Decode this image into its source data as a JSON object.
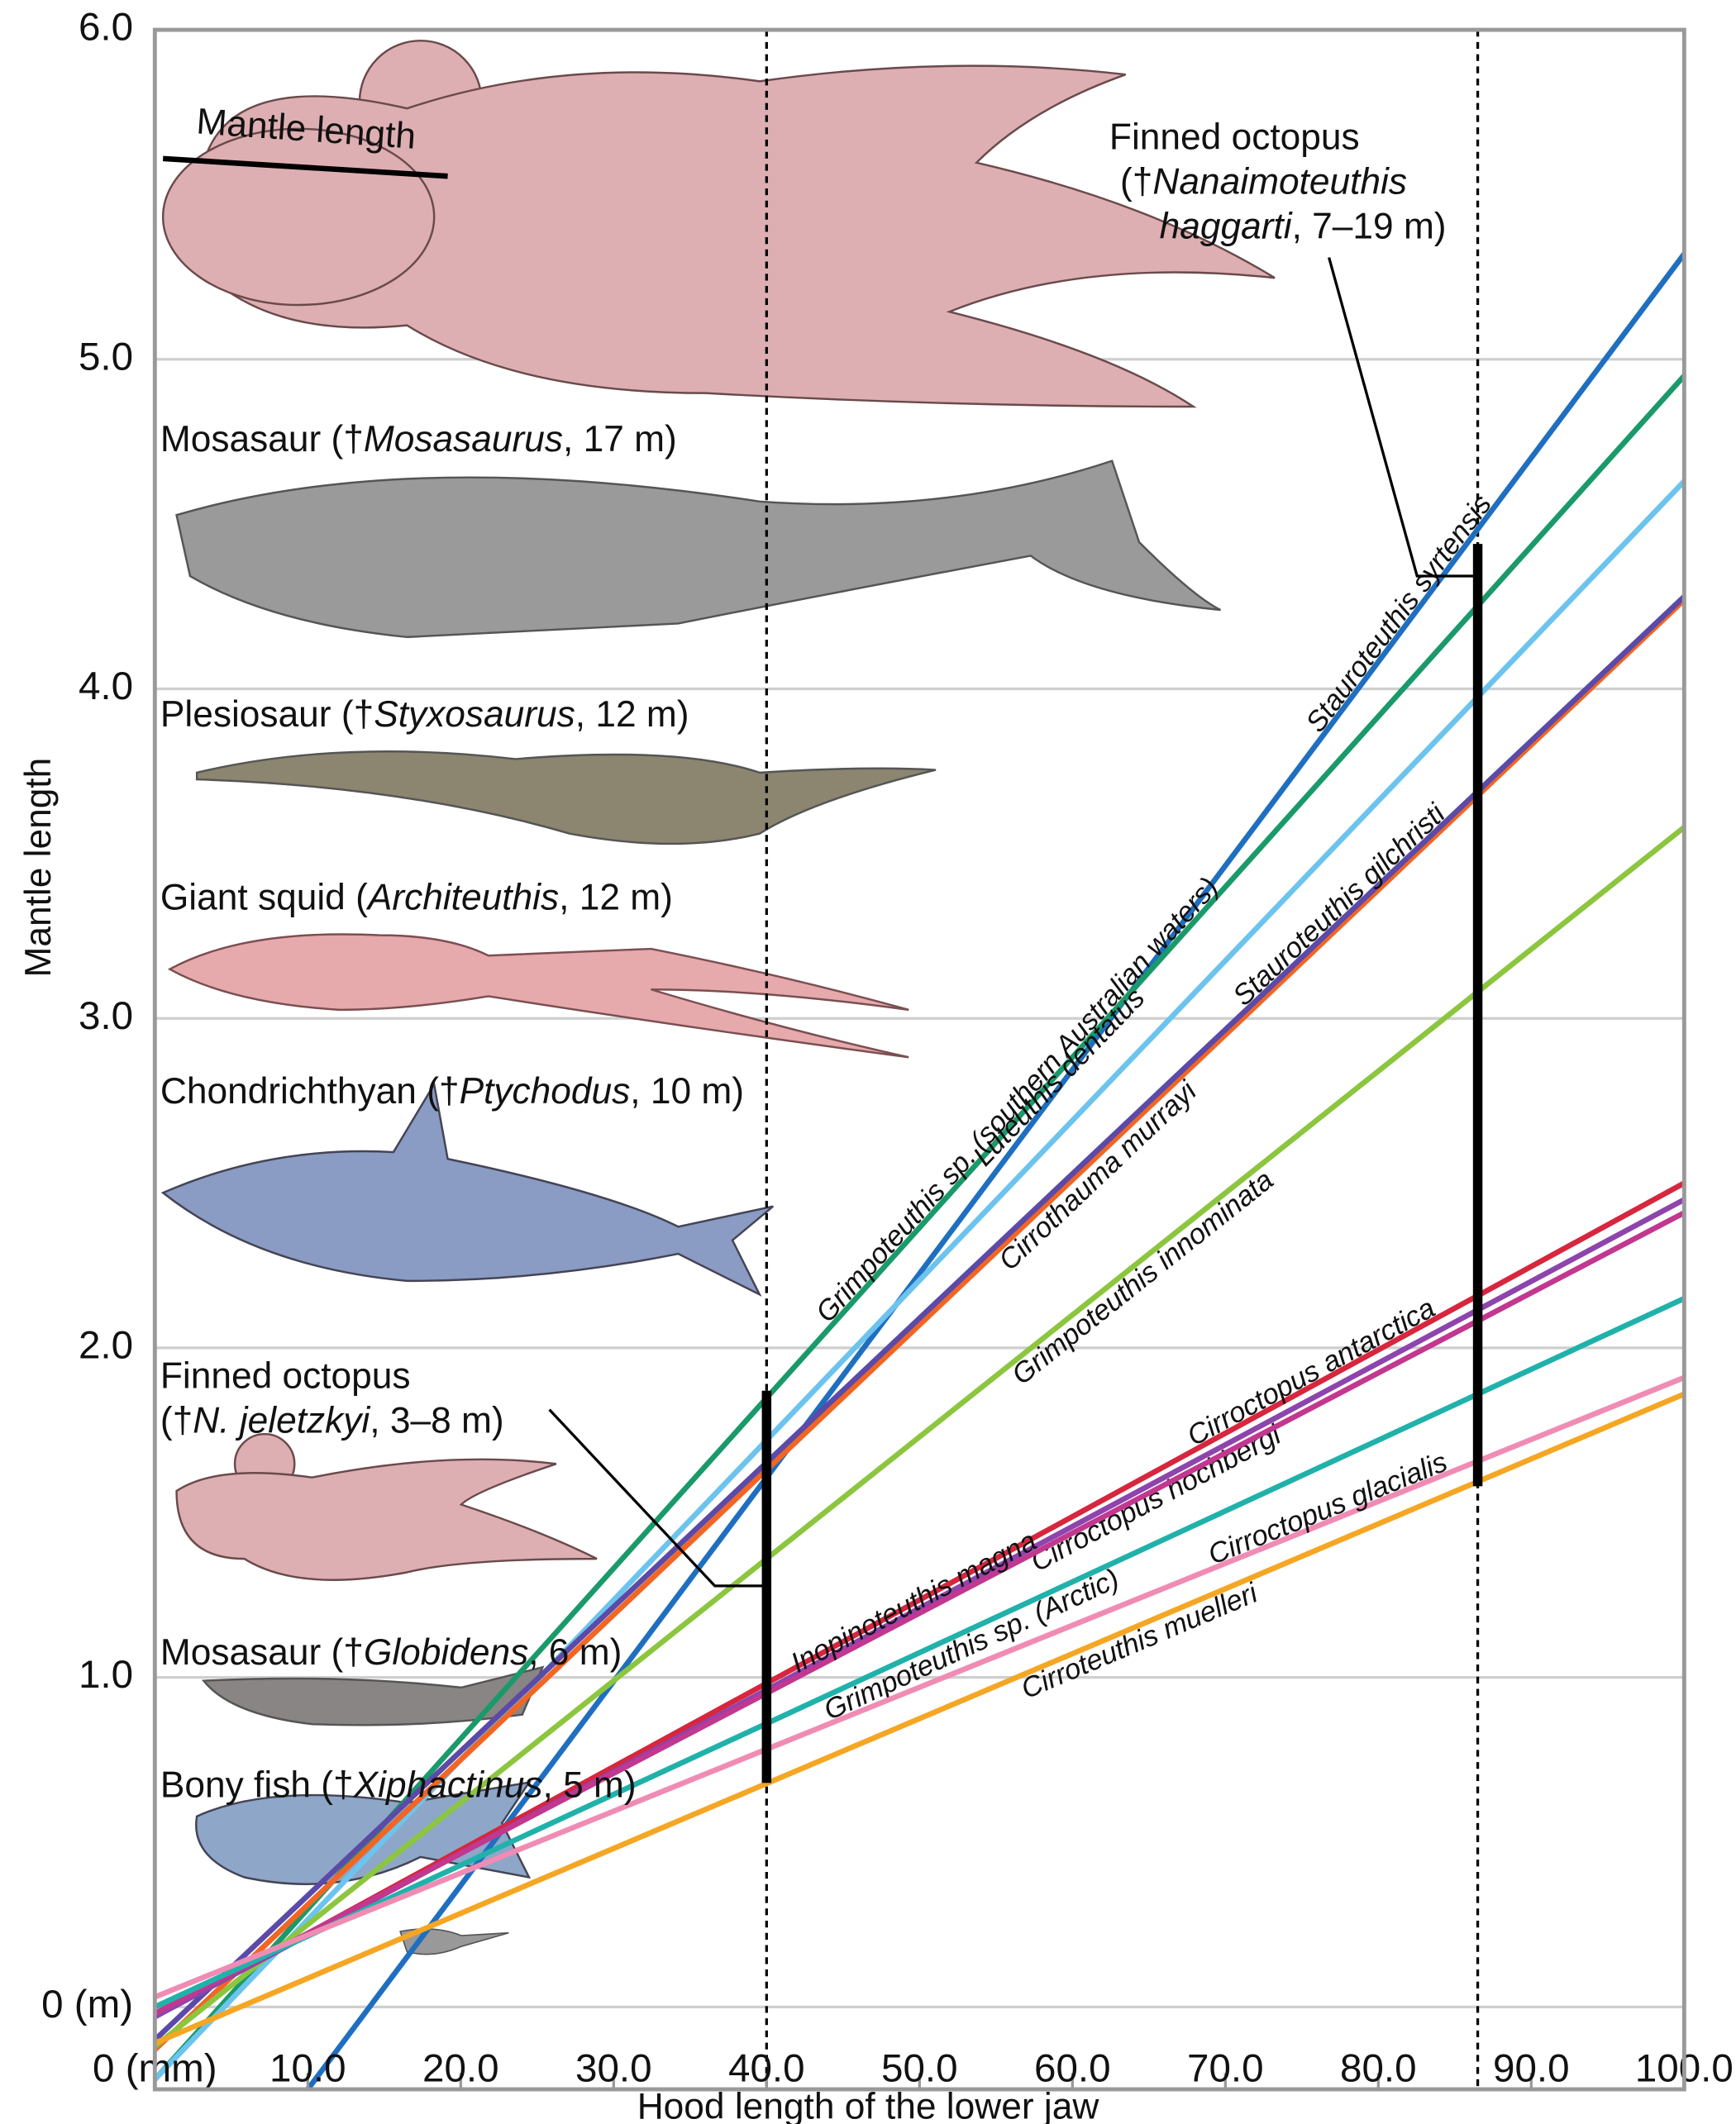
{
  "chart_data": {
    "type": "line",
    "xlabel": "Hood length of the lower jaw",
    "ylabel": "Mantle length",
    "xlim": [
      0,
      100
    ],
    "ylim": [
      -0.25,
      6.0
    ],
    "xticks": [
      {
        "value": 0,
        "label": "0 (mm)"
      },
      {
        "value": 10,
        "label": "10.0"
      },
      {
        "value": 20,
        "label": "20.0"
      },
      {
        "value": 30,
        "label": "30.0"
      },
      {
        "value": 40,
        "label": "40.0"
      },
      {
        "value": 50,
        "label": "50.0"
      },
      {
        "value": 60,
        "label": "60.0"
      },
      {
        "value": 70,
        "label": "70.0"
      },
      {
        "value": 80,
        "label": "80.0"
      },
      {
        "value": 90,
        "label": "90.0"
      },
      {
        "value": 100,
        "label": "100.0"
      }
    ],
    "yticks": [
      {
        "value": 0,
        "label": "0 (m)"
      },
      {
        "value": 1,
        "label": "1.0"
      },
      {
        "value": 2,
        "label": "2.0"
      },
      {
        "value": 3,
        "label": "3.0"
      },
      {
        "value": 4,
        "label": "4.0"
      },
      {
        "value": 5,
        "label": "5.0"
      },
      {
        "value": 6,
        "label": "6.0"
      }
    ],
    "grid": true,
    "series": [
      {
        "name": "Stauroteuthis syrtensis",
        "color": "#1f6fc0",
        "x": [
          10,
          100
        ],
        "values": [
          -0.25,
          5.32
        ]
      },
      {
        "name": "Grimpoteuthis sp. (southern Australian waters)",
        "color": "#1a9a6a",
        "x": [
          0,
          100
        ],
        "values": [
          -0.22,
          4.95
        ]
      },
      {
        "name": "Luteuthis dentatus",
        "color": "#6cc4ee",
        "x": [
          0,
          100
        ],
        "values": [
          -0.22,
          4.63
        ]
      },
      {
        "name": "Cirrothauma murrayi",
        "color": "#f26522",
        "x": [
          0,
          100
        ],
        "values": [
          -0.13,
          4.27
        ]
      },
      {
        "name": "Stauroteuthis gilchristi",
        "color": "#5b4aa8",
        "x": [
          0,
          100
        ],
        "values": [
          -0.1,
          4.28
        ]
      },
      {
        "name": "Grimpoteuthis innominata",
        "color": "#8cc63f",
        "x": [
          0,
          100
        ],
        "values": [
          -0.12,
          3.58
        ]
      },
      {
        "name": "Cirroctopus antarctica",
        "color": "#d7263d",
        "x": [
          0,
          100
        ],
        "values": [
          -0.03,
          2.5
        ]
      },
      {
        "name": "Cirroctopus hochbergi",
        "color": "#8e44ad",
        "x": [
          0,
          100
        ],
        "values": [
          -0.03,
          2.45
        ]
      },
      {
        "name": "Inopinoteuthis magna",
        "color": "#c2378f",
        "x": [
          0,
          100
        ],
        "values": [
          -0.02,
          2.41
        ]
      },
      {
        "name": "Grimpoteuthis sp. (Arctic)",
        "color": "#20b2aa",
        "x": [
          0,
          100
        ],
        "values": [
          0.0,
          2.15
        ]
      },
      {
        "name": "Cirroctopus glacialis",
        "color": "#f08cb4",
        "x": [
          0,
          100
        ],
        "values": [
          0.03,
          1.91
        ]
      },
      {
        "name": "Cirroteuthis muelleri",
        "color": "#f5a623",
        "x": [
          0,
          100
        ],
        "values": [
          -0.11,
          1.86
        ]
      }
    ],
    "ranges": [
      {
        "x": 40,
        "low": 0.68,
        "high": 1.87
      },
      {
        "x": 86.5,
        "low": 1.58,
        "high": 4.44
      }
    ],
    "mantle_label": "Mantle length",
    "annotations": [
      {
        "parts": [
          "Finned octopus",
          "(†",
          "Nanaimoteuthis",
          "haggarti",
          ", 7–19 m)"
        ]
      },
      {
        "parts": [
          "Mosasaur (†",
          "Mosasaurus",
          ", 17 m)"
        ]
      },
      {
        "parts": [
          "Plesiosaur (†",
          "Styxosaurus",
          ", 12 m)"
        ]
      },
      {
        "parts": [
          "Giant squid (",
          "Architeuthis",
          ", 12 m)"
        ]
      },
      {
        "parts": [
          "Chondrichthyan (†",
          "Ptychodus",
          ", 10 m)"
        ]
      },
      {
        "parts": [
          "Finned octopus",
          "(†",
          "N. jeletzkyi",
          ", 3–8 m)"
        ]
      },
      {
        "parts": [
          "Mosasaur (†",
          "Globidens",
          ", 6 m)"
        ]
      },
      {
        "parts": [
          "Bony fish (†",
          "Xiphactinus",
          ", 5 m)"
        ]
      }
    ]
  }
}
